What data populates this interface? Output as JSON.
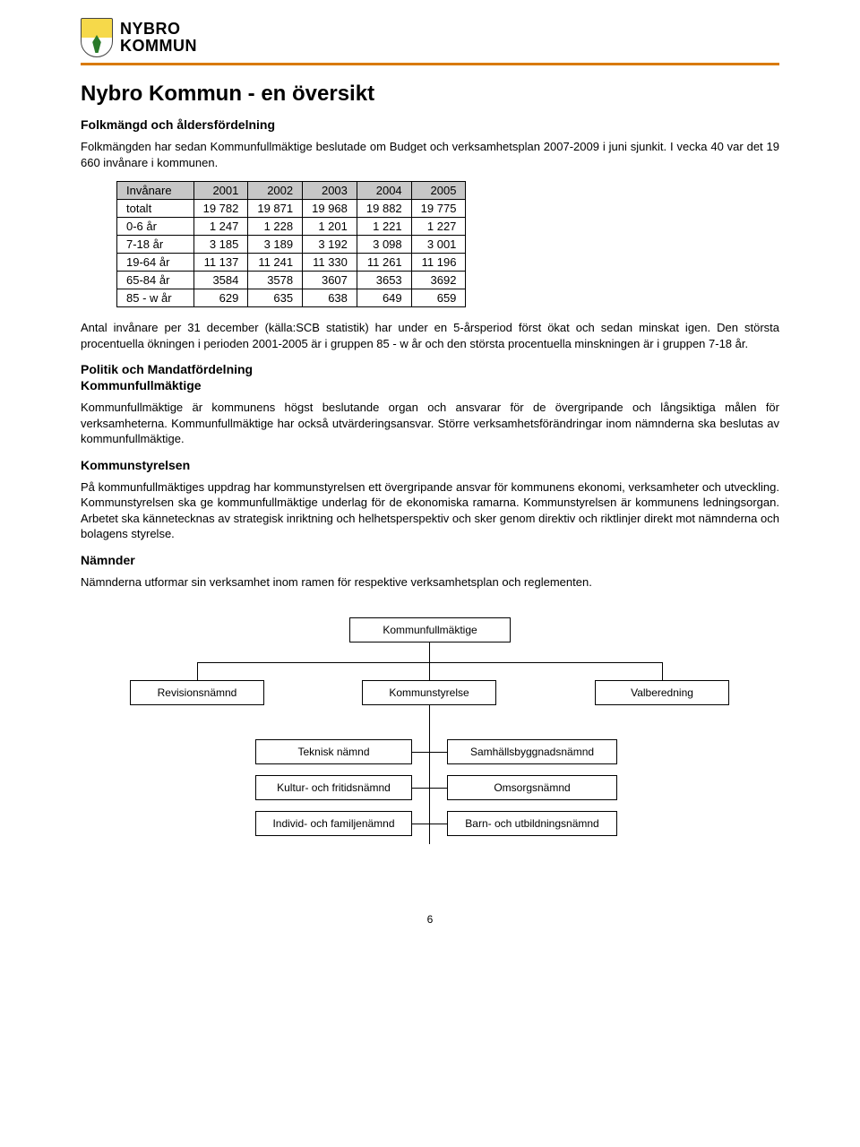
{
  "brand": {
    "line1": "NYBRO",
    "line2": "KOMMUN"
  },
  "title": "Nybro Kommun - en översikt",
  "section1_heading": "Folkmängd och åldersfördelning",
  "section1_para": "Folkmängden har sedan Kommunfullmäktige beslutade om Budget och verksamhetsplan 2007-2009 i juni sjunkit. I vecka 40 var det 19 660 invånare i kommunen.",
  "pop_table": {
    "header_label": "Invånare",
    "years": [
      "2001",
      "2002",
      "2003",
      "2004",
      "2005"
    ],
    "rows": [
      {
        "label": "totalt",
        "v": [
          "19 782",
          "19 871",
          "19 968",
          "19 882",
          "19 775"
        ]
      },
      {
        "label": "0-6 år",
        "v": [
          "1 247",
          "1 228",
          "1 201",
          "1 221",
          "1 227"
        ]
      },
      {
        "label": "7-18 år",
        "v": [
          "3 185",
          "3 189",
          "3 192",
          "3 098",
          "3 001"
        ]
      },
      {
        "label": "19-64 år",
        "v": [
          "11 137",
          "11 241",
          "11 330",
          "11 261",
          "11 196"
        ]
      },
      {
        "label": "65-84 år",
        "v": [
          "3584",
          "3578",
          "3607",
          "3653",
          "3692"
        ]
      },
      {
        "label": "85 - w år",
        "v": [
          "629",
          "635",
          "638",
          "649",
          "659"
        ]
      }
    ]
  },
  "para_after_table": "Antal invånare per 31 december (källa:SCB statistik) har under en 5-årsperiod först ökat och sedan minskat igen. Den största procentuella ökningen i perioden 2001-2005 är i gruppen 85 - w år och den största procentuella minskningen är i gruppen 7-18 år.",
  "section2_heading": "Politik och Mandatfördelning",
  "section2_sub": "Kommunfullmäktige",
  "section2_para": "Kommunfullmäktige är kommunens högst beslutande organ och ansvarar för de övergripande och långsiktiga målen för verksamheterna. Kommunfullmäktige har också utvärderingsansvar. Större verksamhetsförändringar inom nämnderna ska beslutas av kommunfullmäktige.",
  "section3_heading": "Kommunstyrelsen",
  "section3_para": "På kommunfullmäktiges uppdrag har kommunstyrelsen ett övergripande ansvar för kommunens ekonomi, verksamheter och utveckling. Kommunstyrelsen ska ge kommunfullmäktige underlag för de ekonomiska ramarna. Kommunstyrelsen är kommunens ledningsorgan. Arbetet ska kännetecknas av strategisk inriktning och helhetsperspektiv och sker genom direktiv och riktlinjer direkt mot nämnderna och bolagens styrelse.",
  "section4_heading": "Nämnder",
  "section4_para": "Nämnderna utformar sin verksamhet inom ramen för respektive verksamhetsplan och reglementen.",
  "org": {
    "top": "Kommunfullmäktige",
    "level2": [
      "Revisionsnämnd",
      "Kommunstyrelse",
      "Valberedning"
    ],
    "left_col": [
      "Teknisk nämnd",
      "Kultur- och fritidsnämnd",
      "Individ- och familjenämnd"
    ],
    "right_col": [
      "Samhällsbyggnadsnämnd",
      "Omsorgsnämnd",
      "Barn- och utbildningsnämnd"
    ]
  },
  "page_number": "6"
}
